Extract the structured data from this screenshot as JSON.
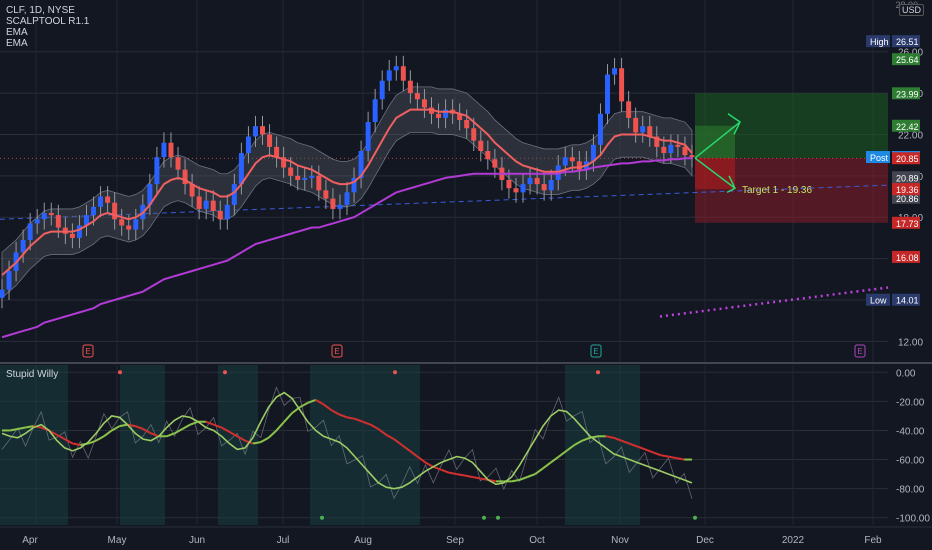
{
  "legend": {
    "symbol": "CLF, 1D, NYSE",
    "indicator1": "SCALPTOOL R1.1",
    "indicator2": "EMA",
    "indicator3": "EMA"
  },
  "oscillator_title": "Stupid Willy",
  "currency": "USD",
  "price_top": "28.00",
  "target_label": "Target 1 - 19.36",
  "earnings_marker": "E",
  "colors": {
    "background": "#131722",
    "up": "#2962ff",
    "down": "#ef5350",
    "ema_fast": "#f06060",
    "ema_slow": "#b23bd6",
    "osc_red": "#d32f2f",
    "osc_green": "#8bc34a",
    "profit_zone": "#1b5e20",
    "loss_zone": "#7f1d2a",
    "target_text": "#c6e36a"
  },
  "chart_data": {
    "type": "line",
    "title": "",
    "price_axis": {
      "ylim": [
        11,
        28.5
      ],
      "ticks": [
        "26.00",
        "24.00",
        "22.00",
        "20.00",
        "18.00",
        "12.00"
      ],
      "badges": [
        {
          "label": "High",
          "value": "26.51",
          "color": "#2a3a6b"
        },
        {
          "value": "25.64",
          "color": "#2e7d32"
        },
        {
          "value": "23.99",
          "color": "#2e7d32"
        },
        {
          "value": "22.42",
          "color": "#2e7d32"
        },
        {
          "label": "Post",
          "value": "20.91",
          "color": "#1e88e5"
        },
        {
          "value": "20.89",
          "color": "#434651"
        },
        {
          "value": "20.86",
          "color": "#434651"
        },
        {
          "value": "20.86",
          "color": "#434651"
        },
        {
          "value": "20.85",
          "color": "#c62828"
        },
        {
          "value": "19.36",
          "color": "#c62828"
        },
        {
          "value": "17.73",
          "color": "#c62828"
        },
        {
          "value": "16.08",
          "color": "#c62828"
        },
        {
          "label": "Low",
          "value": "14.01",
          "color": "#2a3a6b"
        }
      ]
    },
    "x_axis": {
      "labels": [
        "Apr",
        "May",
        "Jun",
        "Jul",
        "Aug",
        "Sep",
        "Oct",
        "Nov",
        "Dec",
        "2022",
        "Feb"
      ]
    },
    "earnings_months": [
      "May",
      "Aug",
      "Oct",
      "Jan"
    ],
    "price_series": [
      {
        "name": "close",
        "values": [
          14.5,
          15.4,
          16.3,
          16.9,
          17.7,
          17.9,
          18.2,
          18.1,
          17.5,
          17.2,
          17.0,
          17.6,
          18.1,
          18.5,
          19.0,
          18.7,
          17.9,
          17.6,
          17.4,
          17.9,
          18.6,
          19.6,
          20.9,
          21.6,
          20.9,
          20.3,
          19.6,
          19.0,
          18.4,
          18.8,
          18.3,
          17.9,
          18.6,
          19.6,
          21.1,
          21.9,
          22.4,
          22.0,
          21.4,
          20.9,
          20.4,
          20.0,
          19.8,
          19.9,
          20.0,
          19.3,
          18.9,
          18.4,
          18.6,
          19.2,
          19.9,
          21.2,
          22.6,
          23.7,
          24.6,
          25.1,
          25.3,
          24.6,
          24.0,
          23.7,
          23.3,
          23.0,
          22.8,
          23.2,
          23.0,
          22.7,
          22.3,
          21.7,
          21.2,
          20.8,
          20.4,
          19.8,
          19.4,
          19.2,
          19.6,
          19.9,
          19.6,
          19.3,
          19.8,
          20.5,
          20.9,
          20.7,
          20.3,
          20.7,
          21.5,
          23.0,
          24.9,
          25.2,
          23.6,
          22.8,
          22.1,
          22.4,
          21.9,
          21.4,
          21.1,
          21.5,
          21.4,
          21.0,
          20.9
        ]
      },
      {
        "name": "ema_fast",
        "values": [
          15.2,
          15.5,
          15.8,
          16.2,
          16.6,
          16.9,
          17.2,
          17.3,
          17.3,
          17.3,
          17.3,
          17.4,
          17.6,
          17.8,
          18.1,
          18.2,
          18.1,
          18.0,
          17.9,
          18.0,
          18.2,
          18.6,
          19.1,
          19.6,
          19.8,
          19.9,
          19.8,
          19.6,
          19.4,
          19.3,
          19.2,
          19.0,
          19.0,
          19.2,
          19.6,
          20.1,
          20.6,
          20.9,
          21.0,
          20.9,
          20.8,
          20.7,
          20.5,
          20.4,
          20.3,
          20.1,
          19.9,
          19.7,
          19.6,
          19.6,
          19.7,
          20.0,
          20.5,
          21.1,
          21.7,
          22.3,
          22.8,
          23.0,
          23.2,
          23.2,
          23.2,
          23.2,
          23.1,
          23.1,
          23.1,
          23.0,
          22.9,
          22.6,
          22.3,
          22.0,
          21.6,
          21.3,
          21.0,
          20.7,
          20.5,
          20.4,
          20.3,
          20.2,
          20.2,
          20.2,
          20.3,
          20.4,
          20.4,
          20.5,
          20.7,
          21.0,
          21.5,
          21.9,
          22.0,
          22.0,
          22.0,
          22.0,
          21.9,
          21.8,
          21.7,
          21.7,
          21.6,
          21.5,
          21.1
        ]
      },
      {
        "name": "ema_slow",
        "values": [
          12.2,
          12.3,
          12.4,
          12.5,
          12.6,
          12.7,
          12.9,
          13.0,
          13.1,
          13.2,
          13.3,
          13.4,
          13.5,
          13.6,
          13.8,
          13.9,
          14.0,
          14.1,
          14.2,
          14.3,
          14.4,
          14.6,
          14.8,
          15.0,
          15.1,
          15.2,
          15.3,
          15.4,
          15.5,
          15.6,
          15.7,
          15.8,
          15.9,
          16.1,
          16.3,
          16.5,
          16.7,
          16.8,
          16.9,
          17.0,
          17.1,
          17.2,
          17.3,
          17.4,
          17.5,
          17.5,
          17.6,
          17.7,
          17.8,
          17.9,
          18.0,
          18.2,
          18.4,
          18.6,
          18.8,
          19.0,
          19.2,
          19.3,
          19.4,
          19.5,
          19.6,
          19.7,
          19.8,
          19.9,
          19.95,
          20.0,
          20.05,
          20.1,
          20.1,
          20.1,
          20.1,
          20.1,
          20.1,
          20.1,
          20.1,
          20.1,
          20.1,
          20.1,
          20.1,
          20.1,
          20.2,
          20.2,
          20.25,
          20.3,
          20.4,
          20.45,
          20.5,
          20.55,
          20.6,
          20.6,
          20.65,
          20.7,
          20.7,
          20.75,
          20.75,
          20.8,
          20.8,
          20.85,
          20.85
        ]
      }
    ],
    "oscillator": {
      "ylim": [
        -105,
        5
      ],
      "ticks": [
        "0.00",
        "-20.00",
        "-40.00",
        "-60.00",
        "-80.00",
        "-100.00"
      ],
      "series": [
        {
          "name": "signal",
          "values": [
            -40,
            -40,
            -39,
            -38,
            -37,
            -38,
            -40,
            -43,
            -46,
            -49,
            -50,
            -49,
            -47,
            -44,
            -40,
            -37,
            -36,
            -37,
            -39,
            -42,
            -44,
            -44,
            -42,
            -39,
            -36,
            -34,
            -34,
            -36,
            -38,
            -41,
            -44,
            -47,
            -49,
            -48,
            -45,
            -40,
            -34,
            -28,
            -24,
            -21,
            -19,
            -22,
            -26,
            -29,
            -31,
            -32,
            -34,
            -36,
            -39,
            -43,
            -46,
            -50,
            -54,
            -58,
            -62,
            -65,
            -67,
            -69,
            -70,
            -71,
            -72,
            -73,
            -74,
            -75,
            -75,
            -75,
            -74,
            -72,
            -70,
            -66,
            -62,
            -58,
            -54,
            -50,
            -47,
            -45,
            -44,
            -44,
            -45,
            -47,
            -49,
            -51,
            -53,
            -55,
            -57,
            -58,
            -59,
            -60,
            -60
          ]
        },
        {
          "name": "main",
          "values": [
            -42,
            -44,
            -45,
            -42,
            -38,
            -36,
            -40,
            -47,
            -52,
            -54,
            -52,
            -48,
            -42,
            -35,
            -30,
            -31,
            -36,
            -42,
            -46,
            -47,
            -44,
            -38,
            -33,
            -30,
            -31,
            -34,
            -38,
            -40,
            -44,
            -49,
            -53,
            -52,
            -45,
            -34,
            -24,
            -17,
            -14,
            -18,
            -26,
            -34,
            -40,
            -44,
            -46,
            -48,
            -52,
            -58,
            -64,
            -70,
            -76,
            -79,
            -80,
            -79,
            -76,
            -72,
            -68,
            -65,
            -62,
            -60,
            -58,
            -59,
            -62,
            -68,
            -74,
            -77,
            -76,
            -72,
            -64,
            -55,
            -46,
            -37,
            -30,
            -26,
            -27,
            -32,
            -38,
            -44,
            -48,
            -52,
            -56,
            -58,
            -60,
            -62,
            -64,
            -66,
            -68,
            -70,
            -72,
            -74,
            -76
          ]
        }
      ]
    },
    "projection": {
      "entry": 20.86,
      "profit_top": 23.99,
      "profit_bottom": 20.86,
      "stop_top": 20.86,
      "stop_bottom": 17.73,
      "target": 19.36
    }
  }
}
